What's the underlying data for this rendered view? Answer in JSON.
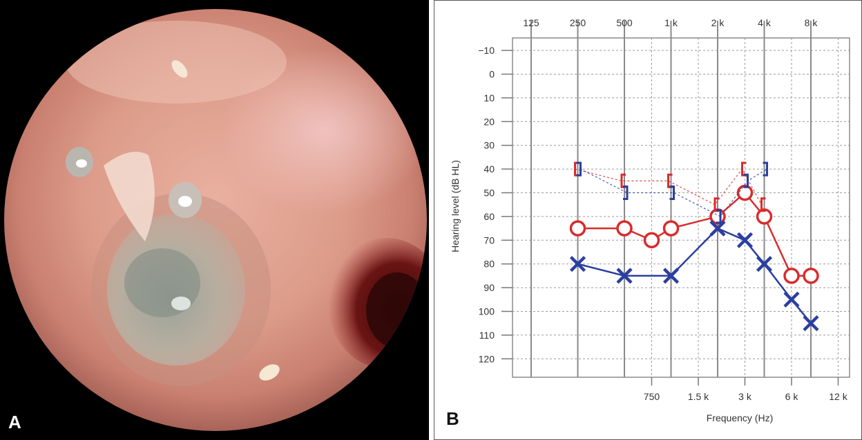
{
  "panels": {
    "a_label": "A",
    "b_label": "B"
  },
  "chart_data": {
    "type": "line",
    "ylabel": "Hearing level (dB HL)",
    "xlabel": "Frequency (Hz)",
    "y_range": [
      -10,
      120
    ],
    "y_ticks": [
      "−10",
      "0",
      "10",
      "20",
      "30",
      "40",
      "50",
      "60",
      "70",
      "80",
      "90",
      "100",
      "110",
      "120"
    ],
    "top_freq_labels": [
      "125",
      "250",
      "500",
      "1 k",
      "2 k",
      "4 k",
      "8 k"
    ],
    "bottom_freq_labels": [
      "750",
      "1.5 k",
      "3 k",
      "6 k",
      "12 k"
    ],
    "grid": true,
    "series": [
      {
        "color": "#d92b2b",
        "marker": "O",
        "x": [
          250,
          500,
          750,
          1000,
          2000,
          3000,
          4000,
          6000,
          8000
        ],
        "values": [
          65,
          65,
          70,
          65,
          60,
          50,
          60,
          85,
          85
        ]
      },
      {
        "color": "#2a3fa0",
        "marker": "X",
        "x": [
          250,
          500,
          1000,
          2000,
          3000,
          4000,
          6000,
          8000
        ],
        "values": [
          80,
          85,
          85,
          65,
          70,
          80,
          95,
          105
        ]
      },
      {
        "color": "#d92b2b",
        "marker": "[",
        "x": [
          250,
          500,
          1000,
          2000,
          3000,
          4000
        ],
        "values": [
          40,
          45,
          45,
          55,
          40,
          55
        ]
      },
      {
        "color": "#2a3fa0",
        "marker": "]",
        "x": [
          250,
          500,
          1000,
          2000,
          3000,
          4000
        ],
        "values": [
          40,
          50,
          50,
          60,
          45,
          40
        ]
      }
    ]
  }
}
